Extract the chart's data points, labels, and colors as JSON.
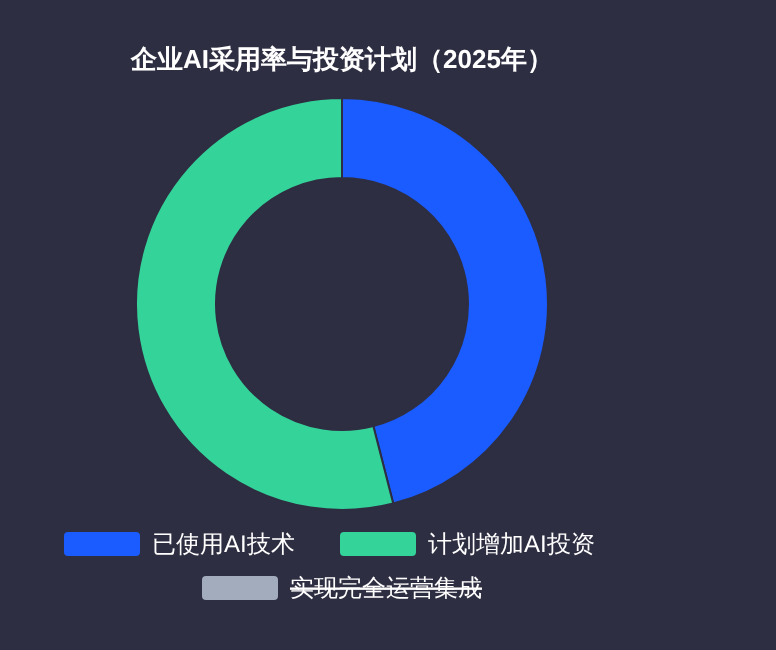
{
  "chart_data": {
    "type": "donut",
    "title": "企业AI采用率与投资计划（2025年）",
    "categories": [
      "已使用AI技术",
      "计划增加AI投资",
      "实现完全运营集成"
    ],
    "values": [
      46,
      54,
      null
    ],
    "colors": [
      "#1a5cff",
      "#34d399",
      "#a3acbd"
    ],
    "legend": "bottom"
  }
}
